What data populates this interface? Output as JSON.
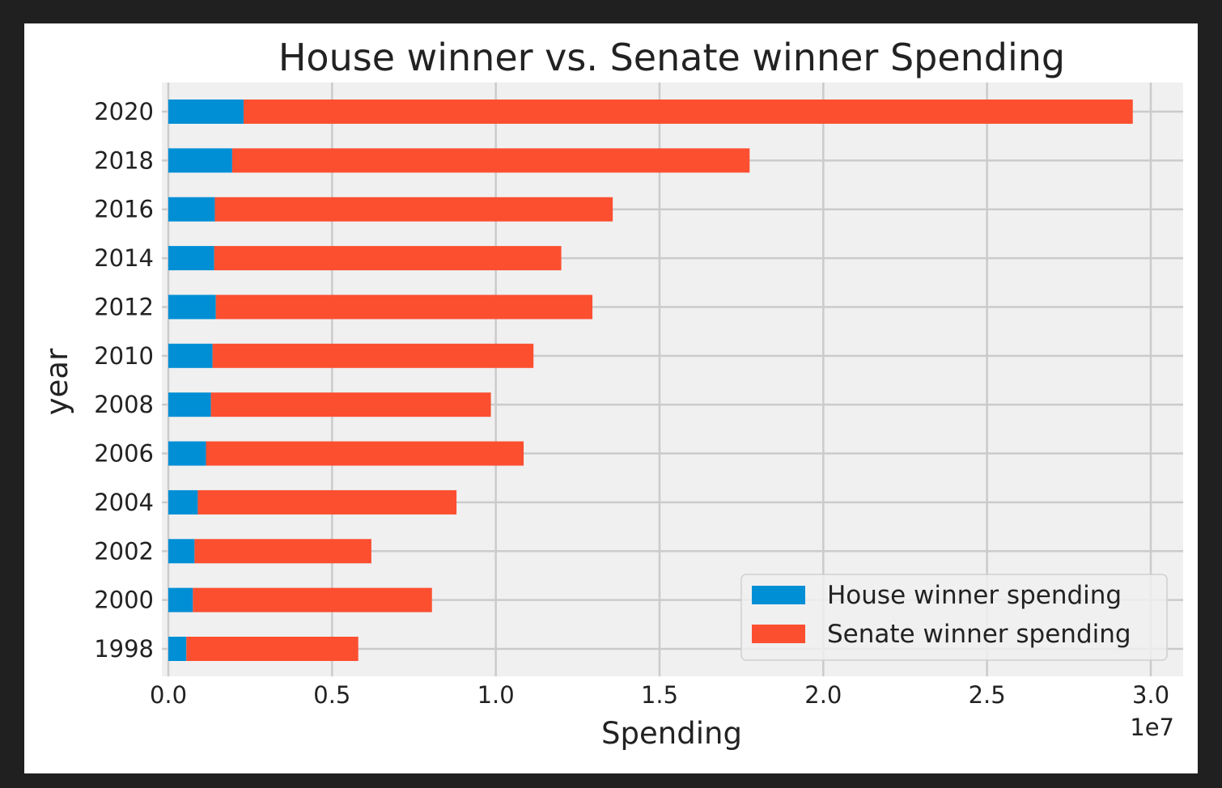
{
  "chart_data": {
    "type": "bar",
    "orientation": "horizontal",
    "stacked": true,
    "title": "House winner vs. Senate winner Spending",
    "xlabel": "Spending",
    "ylabel": "year",
    "x_offset_label": "1e7",
    "xlim": [
      0,
      30900000
    ],
    "xticks": [
      0,
      5000000,
      10000000,
      15000000,
      20000000,
      25000000,
      30000000
    ],
    "xtick_labels": [
      "0.0",
      "0.5",
      "1.0",
      "1.5",
      "2.0",
      "2.5",
      "3.0"
    ],
    "categories": [
      "1998",
      "2000",
      "2002",
      "2004",
      "2006",
      "2008",
      "2010",
      "2012",
      "2014",
      "2016",
      "2018",
      "2020"
    ],
    "series": [
      {
        "name": "House winner spending",
        "color": "#008fd5",
        "values": [
          550000,
          750000,
          800000,
          900000,
          1150000,
          1300000,
          1350000,
          1450000,
          1400000,
          1420000,
          1950000,
          2300000
        ]
      },
      {
        "name": "Senate winner spending",
        "color": "#fc4f30",
        "values": [
          5250000,
          7300000,
          5400000,
          7900000,
          9700000,
          8550000,
          9800000,
          11500000,
          10600000,
          12150000,
          15800000,
          27150000
        ]
      }
    ],
    "grid": true,
    "legend_position": "lower right",
    "plot_background": "#f0f0f0"
  }
}
